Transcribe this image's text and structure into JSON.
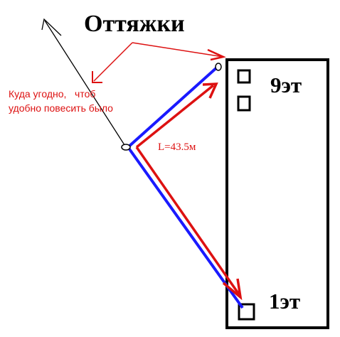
{
  "title": "Оттяжки",
  "note": {
    "line1": "Куда угодно,   чтоб",
    "line2": "удобно повесить было"
  },
  "length_label": "L=43.5м",
  "floors": {
    "top": "9эт",
    "bottom": "1эт"
  },
  "colors": {
    "antenna": "#1a1aff",
    "guy": "#dd1111",
    "outline": "#000000",
    "background": "#ffffff"
  }
}
